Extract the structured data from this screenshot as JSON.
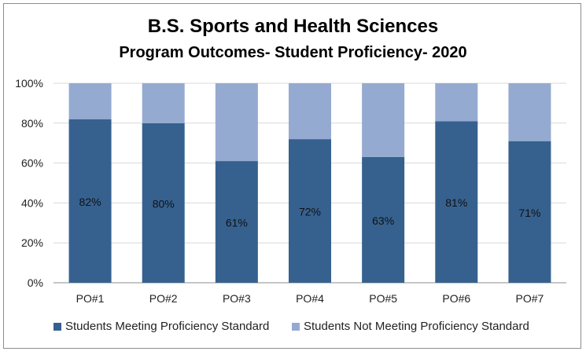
{
  "chart_data": {
    "type": "bar",
    "stacked": true,
    "percent_stacked": true,
    "title": "B.S. Sports and Health Sciences",
    "subtitle": "Program Outcomes- Student Proficiency- 2020",
    "categories": [
      "PO#1",
      "PO#2",
      "PO#3",
      "PO#4",
      "PO#5",
      "PO#6",
      "PO#7"
    ],
    "series": [
      {
        "name": "Students Meeting Proficiency Standard",
        "values": [
          82,
          80,
          61,
          72,
          63,
          81,
          71
        ],
        "labels": [
          "82%",
          "80%",
          "61%",
          "72%",
          "63%",
          "81%",
          "71%"
        ],
        "color": "#36618f"
      },
      {
        "name": "Students Not Meeting Proficiency Standard",
        "values": [
          18,
          20,
          39,
          28,
          37,
          19,
          29
        ],
        "color": "#95aad0"
      }
    ],
    "ylim": [
      0,
      100
    ],
    "yticks": [
      "0%",
      "20%",
      "40%",
      "60%",
      "80%",
      "100%"
    ],
    "grid": true,
    "legend_position": "bottom"
  }
}
